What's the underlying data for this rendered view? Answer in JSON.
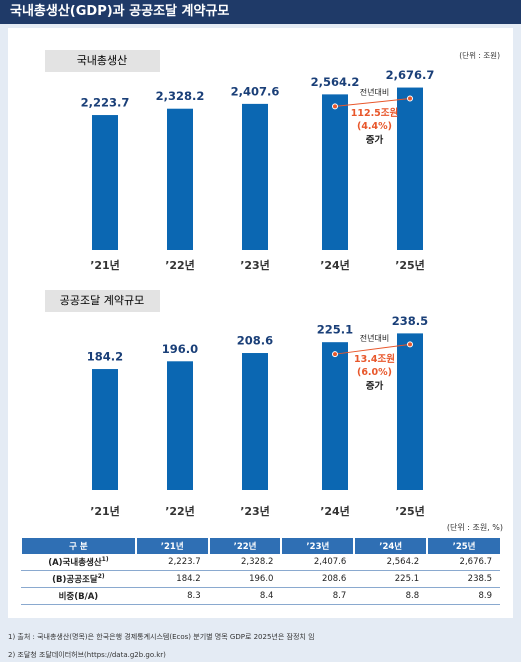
{
  "header": {
    "title": "국내총생산(GDP)과 공공조달 계약규모"
  },
  "chart_data": [
    {
      "type": "bar",
      "title": "국내총생산",
      "unit": "(단위 : 조원)",
      "categories": [
        "’21년",
        "’22년",
        "’23년",
        "’24년",
        "’25년"
      ],
      "values": [
        2223.7,
        2328.2,
        2407.6,
        2564.2,
        2676.7
      ],
      "value_labels": [
        "2,223.7",
        "2,328.2",
        "2,407.6",
        "2,564.2",
        "2,676.7"
      ],
      "color": "#0b67b2",
      "ylim": [
        0,
        2900
      ],
      "annotation": {
        "label": "전년대비",
        "amount": "112.5조원",
        "pct": "(4.4%)",
        "change": "증가",
        "color": "#e8572b"
      }
    },
    {
      "type": "bar",
      "title": "공공조달 계약규모",
      "categories": [
        "’21년",
        "’22년",
        "’23년",
        "’24년",
        "’25년"
      ],
      "values": [
        184.2,
        196.0,
        208.6,
        225.1,
        238.5
      ],
      "value_labels": [
        "184.2",
        "196.0",
        "208.6",
        "225.1",
        "238.5"
      ],
      "color": "#0b67b2",
      "ylim": [
        0,
        300
      ],
      "annotation": {
        "label": "전년대비",
        "amount": "13.4조원",
        "pct": "(6.0%)",
        "change": "증가",
        "color": "#e8572b"
      }
    }
  ],
  "table": {
    "unit": "(단위 : 조원, %)",
    "header": [
      "구 분",
      "’21년",
      "’22년",
      "’23년",
      "’24년",
      "’25년"
    ],
    "rows": [
      {
        "label": "(A)국내총생산",
        "note": "1)",
        "cells": [
          "2,223.7",
          "2,328.2",
          "2,407.6",
          "2,564.2",
          "2,676.7"
        ]
      },
      {
        "label": "(B)공공조달",
        "note": "2)",
        "cells": [
          "184.2",
          "196.0",
          "208.6",
          "225.1",
          "238.5"
        ]
      },
      {
        "label": "비중(B/A)",
        "cells": [
          "8.3",
          "8.4",
          "8.7",
          "8.8",
          "8.9"
        ]
      }
    ]
  },
  "footnotes": [
    "1) 출처 : 국내총생산(명목)은 한국은행 경제통계시스템(Ecos) 분기별 명목 GDP로 2025년은 잠정치 임",
    "2) 조달청 조달데이터허브(https://data.g2b.go.kr)"
  ]
}
